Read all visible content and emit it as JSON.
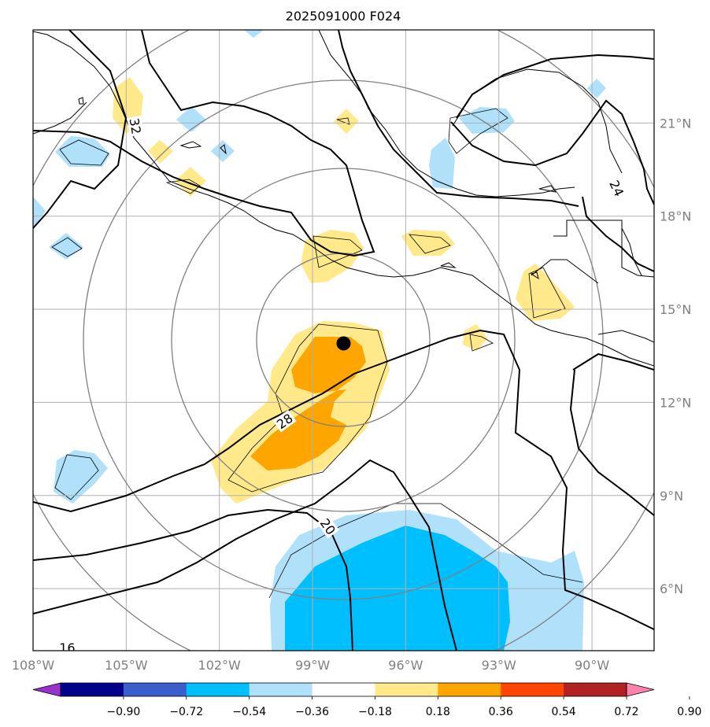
{
  "title": "2025091000 F024",
  "map": {
    "lon_range": [
      -108,
      -88
    ],
    "lat_range": [
      4,
      24
    ],
    "lon_ticks": [
      {
        "lon": -108,
        "label": "108°W"
      },
      {
        "lon": -105,
        "label": "105°W"
      },
      {
        "lon": -102,
        "label": "102°W"
      },
      {
        "lon": -99,
        "label": "99°W"
      },
      {
        "lon": -96,
        "label": "96°W"
      },
      {
        "lon": -93,
        "label": "93°W"
      },
      {
        "lon": -90,
        "label": "90°W"
      }
    ],
    "lat_ticks": [
      {
        "lat": 21,
        "label": "21°N"
      },
      {
        "lat": 18,
        "label": "18°N"
      },
      {
        "lat": 15,
        "label": "15°N"
      },
      {
        "lat": 12,
        "label": "12°N"
      },
      {
        "lat": 9,
        "label": "9°N"
      },
      {
        "lat": 6,
        "label": "6°N"
      }
    ],
    "grid": true,
    "storm_center": {
      "lon": -98.0,
      "lat": 13.9
    },
    "contour_labels": [
      {
        "text": "32",
        "lon": -104.7,
        "lat": 20.9,
        "rot": 80
      },
      {
        "text": "24",
        "lon": -89.2,
        "lat": 18.9,
        "rot": 65
      },
      {
        "text": "28",
        "lon": -99.9,
        "lat": 11.4,
        "rot": -35
      },
      {
        "text": "20",
        "lon": -98.5,
        "lat": 8.0,
        "rot": 55
      },
      {
        "text": "16",
        "lon": -106.9,
        "lat": 4.1,
        "rot": 0
      }
    ]
  },
  "colorbar": {
    "levels": [
      "-0.90",
      "-0.72",
      "-0.54",
      "-0.36",
      "-0.18",
      "0.18",
      "0.36",
      "0.54",
      "0.72",
      "0.90"
    ],
    "colors": [
      "#9932cc",
      "#00008b",
      "#3a5fcd",
      "#00bfff",
      "#b0e0fa",
      "#ffffff",
      "#ffe98a",
      "#ffa500",
      "#ff4500",
      "#b22222",
      "#ff82ab"
    ]
  },
  "colors": {
    "pos1": "#ffe98a",
    "pos2": "#ffa500",
    "neg1": "#b0e0fa",
    "neg2": "#00bfff",
    "grid": "#b0b0b0",
    "ring": "#808080"
  }
}
